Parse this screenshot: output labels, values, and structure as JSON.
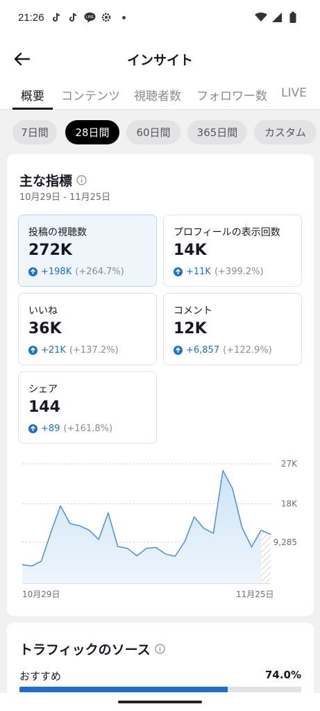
{
  "status_bar": {
    "time": "21:26",
    "icons": [
      "tiktok-icon",
      "tiktok-icon",
      "line-icon",
      "settings-icon"
    ],
    "right_icons": [
      "wifi-icon",
      "signal-icon",
      "battery-icon"
    ]
  },
  "header": {
    "title": "インサイト"
  },
  "tabs": [
    {
      "label": "概要",
      "active": true
    },
    {
      "label": "コンテンツ"
    },
    {
      "label": "視聴者数"
    },
    {
      "label": "フォロワー数"
    },
    {
      "label": "LIVE"
    }
  ],
  "ranges": [
    {
      "label": "7日間"
    },
    {
      "label": "28日間",
      "active": true
    },
    {
      "label": "60日間"
    },
    {
      "label": "365日間"
    },
    {
      "label": "カスタム"
    }
  ],
  "key_metrics": {
    "title": "主な指標",
    "date_range": "10月29日 - 11月25日",
    "items": [
      {
        "label": "投稿の視聴数",
        "value": "272K",
        "change": "+198K",
        "percent": "(+264.7%)",
        "active": true
      },
      {
        "label": "プロフィールの表示回数",
        "value": "14K",
        "change": "+11K",
        "percent": "(+399.2%)"
      },
      {
        "label": "いいね",
        "value": "36K",
        "change": "+21K",
        "percent": "(+137.2%)"
      },
      {
        "label": "コメント",
        "value": "12K",
        "change": "+6,857",
        "percent": "(+122.9%)"
      },
      {
        "label": "シェア",
        "value": "144",
        "change": "+89",
        "percent": "(+161.8%)"
      }
    ]
  },
  "chart_data": {
    "type": "area",
    "series": [
      {
        "values": [
          4200,
          3900,
          5000,
          11500,
          17500,
          13500,
          13000,
          12000,
          9900,
          15900,
          8300,
          7900,
          6200,
          7900,
          8100,
          6600,
          6100,
          9400,
          15000,
          12400,
          11300,
          25500,
          21400,
          12600,
          8200,
          12000,
          11000
        ]
      }
    ],
    "x_start_label": "10月29日",
    "x_end_label": "11月25日",
    "y_ticks": [
      "27K",
      "18K",
      "9,285"
    ],
    "y_tick_values": [
      27000,
      18000,
      9285
    ],
    "ylim": [
      0,
      27000
    ],
    "line_color": "#4a90d9",
    "fill_color": "#dcebf9",
    "incomplete_last_point": true
  },
  "traffic": {
    "title": "トラフィックのソース",
    "items": [
      {
        "label": "おすすめ",
        "percent": "74.0%",
        "fraction": 0.74
      }
    ]
  },
  "colors": {
    "accent": "#1a6fd0",
    "background": "#f1f1f2"
  }
}
